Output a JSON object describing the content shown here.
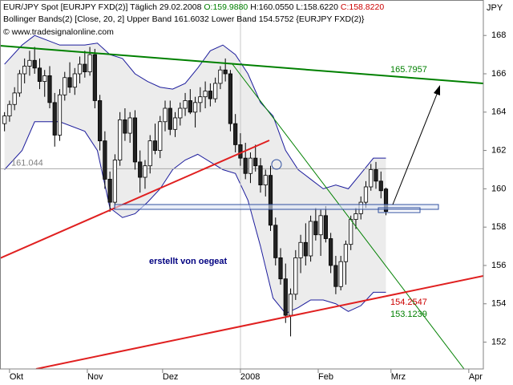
{
  "chart_data": {
    "type": "candlestick",
    "header": [
      {
        "text": "EUR/JPY Spot [EURJPY FXD(2)] Täglich 29.02.2008",
        "color": "#000000"
      },
      {
        "text": "O:159.9880",
        "color": "#008000"
      },
      {
        "text": "H:160.0550 L:158.6220",
        "color": "#000000"
      },
      {
        "text": "C:158.8220",
        "color": "#cc0000"
      }
    ],
    "subtitle": "Bollinger Bands(2) [Close, 20, 2] Upper Band 161.6032 Lower Band 154.5752 {EURJPY FXD(2)}",
    "source": "© www.tradesignalonline.com",
    "y_axis_label": "JPY",
    "annotation": "erstellt von oegeat",
    "reference_line": 161.044,
    "line_labels": [
      165.7957,
      154.2547,
      153.1239
    ],
    "xlim": [
      -3.8,
      188.8
    ],
    "xticks": [
      {
        "value": 0,
        "label": "Okt"
      },
      {
        "value": 31,
        "label": "Nov"
      },
      {
        "value": 61,
        "label": "Dez"
      },
      {
        "value": 92,
        "label": "2008"
      },
      {
        "value": 123,
        "label": "Feb"
      },
      {
        "value": 152,
        "label": "Mrz"
      },
      {
        "value": 183,
        "label": "Apr"
      }
    ],
    "ylim": [
      150.6,
      169.85
    ],
    "yticks": [
      152,
      154,
      156,
      158,
      160,
      162,
      164,
      166,
      168
    ],
    "up_color": "#ffffff",
    "down_color": "#222222",
    "x": [
      -2,
      0,
      2,
      4,
      6,
      8,
      10,
      12,
      14,
      16,
      18,
      20,
      22,
      24,
      26,
      28,
      30,
      32,
      34,
      36,
      38,
      40,
      42,
      44,
      46,
      48,
      50,
      52,
      54,
      56,
      58,
      60,
      62,
      64,
      66,
      68,
      70,
      72,
      74,
      76,
      78,
      80,
      82,
      84,
      86,
      88,
      90,
      92,
      94,
      96,
      98,
      100,
      102,
      104,
      106,
      108,
      110,
      112,
      114,
      116,
      118,
      120,
      122,
      124,
      126,
      128,
      130,
      132,
      134,
      136,
      138,
      140,
      142,
      144,
      146,
      148,
      150
    ],
    "open": [
      163.4,
      163.8,
      164.4,
      165.0,
      166.0,
      166.4,
      166.7,
      166.3,
      165.6,
      165.9,
      164.5,
      162.8,
      164.9,
      165.8,
      165.3,
      166.0,
      166.5,
      166.1,
      167.0,
      164.6,
      162.5,
      160.5,
      159.3,
      161.5,
      163.6,
      162.9,
      163.7,
      161.4,
      160.6,
      161.2,
      162.5,
      162.0,
      163.5,
      164.2,
      163.1,
      163.7,
      164.2,
      164.6,
      164.0,
      164.5,
      164.8,
      165.1,
      164.7,
      165.5,
      166.2,
      166.0,
      163.4,
      162.3,
      161.6,
      160.8,
      161.6,
      161.2,
      160.2,
      160.7,
      158.1,
      156.4,
      155.3,
      153.4,
      154.5,
      156.4,
      157.2,
      156.5,
      158.3,
      157.6,
      158.6,
      157.4,
      156.0,
      154.9,
      156.2,
      157.1,
      158.4,
      158.7,
      159.3,
      160.1,
      161.0,
      160.4,
      159.99
    ],
    "high": [
      164.0,
      164.6,
      165.3,
      166.2,
      166.8,
      167.2,
      167.4,
      166.8,
      166.2,
      166.4,
      165.0,
      165.2,
      166.1,
      166.6,
      166.3,
      166.9,
      167.2,
      167.4,
      167.3,
      164.9,
      163.0,
      160.9,
      161.8,
      164.0,
      164.2,
      164.0,
      164.1,
      162.0,
      161.5,
      162.8,
      163.4,
      163.8,
      164.6,
      164.6,
      164.0,
      164.5,
      165.0,
      165.2,
      164.8,
      165.3,
      165.6,
      165.5,
      165.8,
      166.4,
      166.8,
      166.2,
      163.9,
      162.9,
      162.4,
      161.9,
      162.3,
      161.6,
      161.0,
      161.2,
      158.5,
      156.9,
      156.1,
      154.8,
      156.8,
      157.6,
      158.2,
      158.6,
      159.0,
      158.9,
      159.1,
      157.7,
      156.5,
      156.5,
      157.3,
      158.6,
      159.0,
      159.6,
      160.4,
      161.3,
      161.4,
      160.9,
      160.06
    ],
    "low": [
      163.0,
      163.5,
      164.1,
      164.8,
      165.5,
      165.9,
      166.0,
      165.2,
      164.8,
      164.2,
      162.2,
      162.5,
      164.6,
      165.0,
      164.9,
      165.5,
      165.8,
      165.9,
      164.2,
      162.0,
      160.0,
      158.8,
      159.0,
      161.2,
      162.5,
      162.4,
      161.0,
      159.8,
      160.0,
      160.8,
      161.8,
      161.6,
      163.0,
      162.8,
      162.7,
      163.3,
      163.8,
      163.9,
      163.2,
      164.0,
      164.2,
      164.3,
      164.5,
      165.2,
      165.6,
      163.0,
      161.9,
      161.2,
      160.5,
      160.3,
      160.9,
      159.8,
      159.6,
      157.8,
      156.0,
      155.0,
      153.0,
      152.3,
      154.2,
      155.6,
      156.0,
      156.2,
      157.3,
      156.5,
      157.2,
      155.6,
      154.5,
      154.7,
      155.0,
      156.8,
      157.9,
      158.4,
      159.0,
      159.9,
      160.0,
      159.5,
      158.62
    ],
    "close": [
      163.8,
      164.4,
      165.0,
      166.0,
      166.4,
      166.7,
      166.3,
      165.6,
      165.9,
      164.5,
      162.8,
      164.9,
      165.8,
      165.3,
      166.0,
      166.5,
      166.1,
      167.0,
      164.6,
      162.5,
      160.5,
      159.3,
      161.5,
      163.6,
      162.9,
      163.7,
      161.4,
      160.6,
      161.2,
      162.5,
      162.0,
      163.5,
      164.2,
      163.1,
      163.7,
      164.2,
      164.6,
      164.0,
      164.5,
      164.8,
      165.1,
      164.7,
      165.5,
      166.2,
      166.0,
      163.4,
      162.3,
      161.6,
      160.8,
      161.6,
      161.2,
      160.2,
      160.7,
      158.1,
      156.4,
      155.3,
      153.4,
      154.5,
      156.4,
      157.2,
      156.5,
      158.3,
      157.6,
      158.6,
      157.4,
      156.0,
      154.9,
      156.2,
      157.1,
      158.4,
      158.7,
      159.3,
      160.1,
      161.0,
      160.4,
      159.9,
      158.82
    ],
    "bollinger": {
      "color": "#1c1c9c",
      "fill": "#ececec",
      "x": [
        -2,
        5,
        10,
        20,
        30,
        35,
        40,
        45,
        50,
        55,
        60,
        65,
        70,
        75,
        80,
        85,
        90,
        95,
        100,
        105,
        110,
        115,
        120,
        125,
        130,
        135,
        140,
        145,
        150
      ],
      "upper": [
        166.5,
        167.5,
        168.0,
        167.5,
        167.5,
        167.6,
        167.0,
        166.8,
        166.0,
        165.6,
        165.3,
        165.2,
        165.5,
        166.3,
        167.2,
        167.5,
        167.0,
        166.0,
        164.5,
        163.8,
        162.0,
        161.0,
        160.5,
        160.0,
        160.2,
        160.0,
        160.8,
        161.6,
        161.6
      ],
      "lower": [
        161.0,
        162.0,
        163.5,
        163.5,
        163.0,
        162.0,
        159.0,
        158.5,
        158.7,
        159.3,
        160.0,
        161.0,
        161.5,
        161.8,
        161.4,
        161.0,
        160.8,
        159.4,
        157.0,
        154.3,
        153.5,
        153.8,
        154.2,
        154.2,
        154.0,
        153.6,
        153.9,
        154.6,
        154.6
      ]
    }
  }
}
